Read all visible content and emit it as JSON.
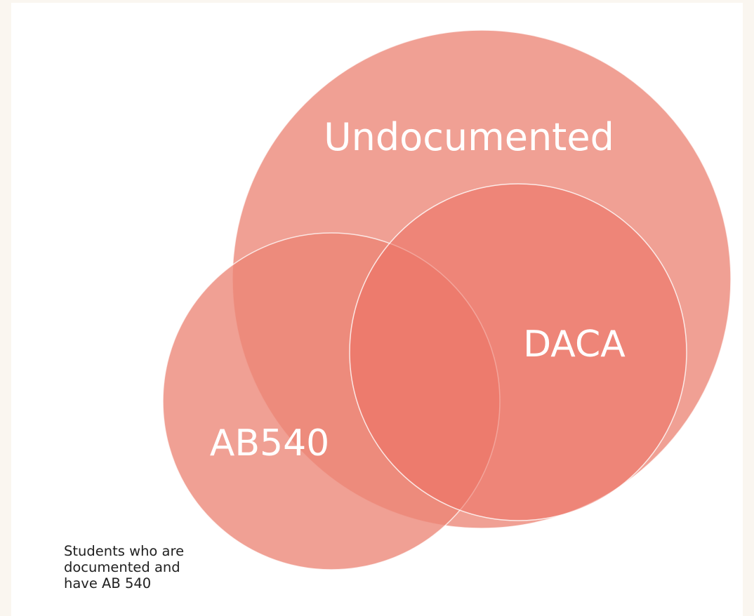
{
  "diagram": {
    "sets": [
      {
        "id": "undocumented",
        "label": "Undocumented",
        "fill": "#ec8576"
      },
      {
        "id": "ab540",
        "label": "AB540",
        "fill": "#ec8576"
      },
      {
        "id": "daca",
        "label": "DACA",
        "fill": "#ec7060"
      }
    ],
    "note_lines": [
      "Students who are",
      "documented and",
      "have AB 540"
    ],
    "colors": {
      "background": "#faf6f0",
      "panel": "#ffffff",
      "circle_stroke": "#ffffff",
      "label_text": "#ffffff",
      "note_text": "#1f1f1f"
    }
  }
}
